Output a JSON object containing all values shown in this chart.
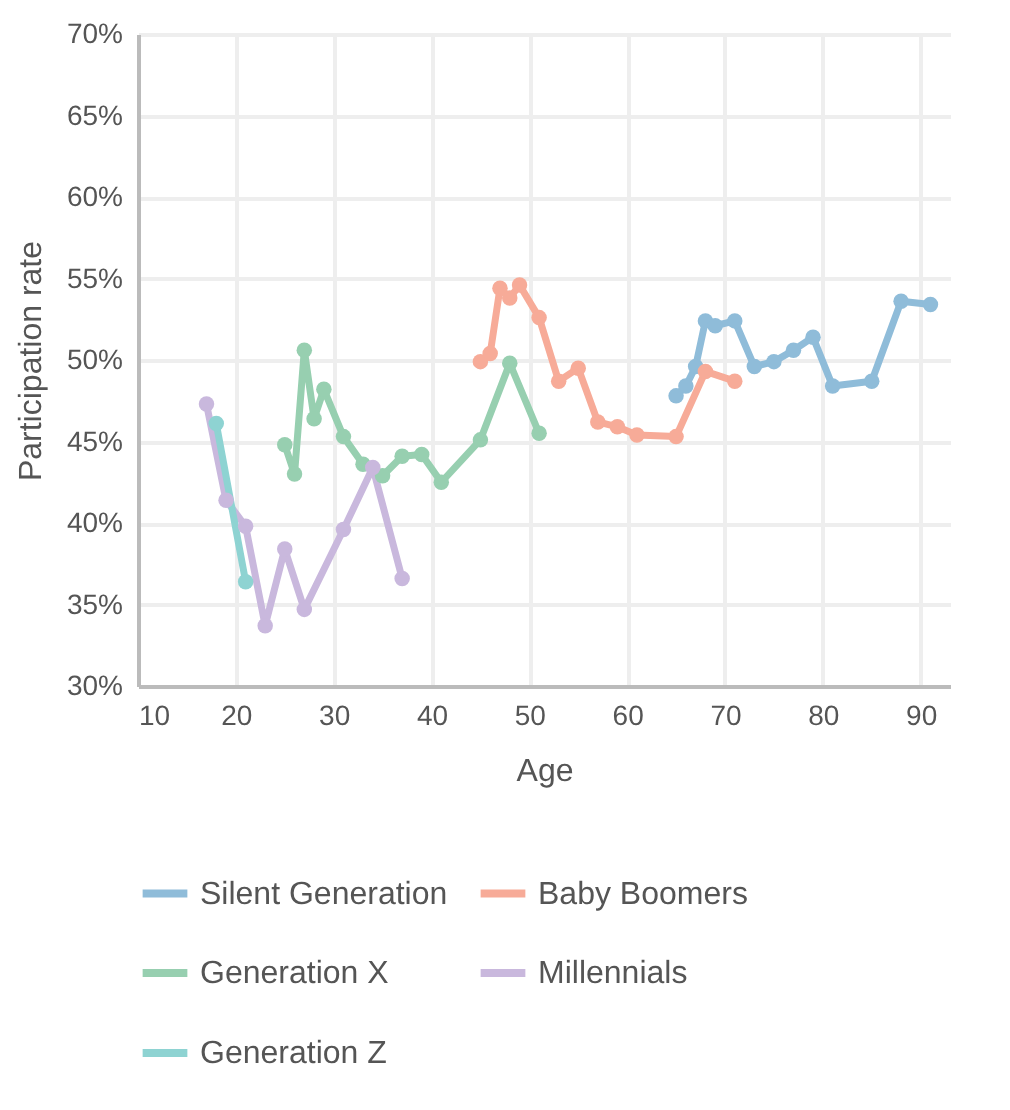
{
  "chart_data": {
    "type": "line",
    "xlabel": "Age",
    "ylabel": "Participation rate",
    "xlim": [
      10,
      93
    ],
    "xticks": [
      10,
      20,
      30,
      40,
      50,
      60,
      70,
      80,
      90
    ],
    "ylim": [
      30,
      70
    ],
    "yticks": [
      {
        "value": 30,
        "label": "30%"
      },
      {
        "value": 35,
        "label": "35%"
      },
      {
        "value": 40,
        "label": "40%"
      },
      {
        "value": 45,
        "label": "45%"
      },
      {
        "value": 50,
        "label": "50%"
      },
      {
        "value": 55,
        "label": "55%"
      },
      {
        "value": 60,
        "label": "60%"
      },
      {
        "value": 65,
        "label": "65%"
      },
      {
        "value": 70,
        "label": "70%"
      }
    ],
    "grid": true,
    "legend": "bottom",
    "marker": "circle",
    "line_style": "solid",
    "series": [
      {
        "name": "Silent Generation",
        "color": "#8fbcd9",
        "x": [
          65,
          66,
          67,
          68,
          69,
          71,
          73,
          75,
          77,
          79,
          81,
          85,
          88,
          91
        ],
        "values": [
          47.8,
          48.4,
          49.6,
          52.4,
          52.1,
          52.4,
          49.6,
          49.9,
          50.6,
          51.4,
          48.4,
          48.7,
          53.6,
          53.4
        ]
      },
      {
        "name": "Baby Boomers",
        "color": "#f7ab98",
        "x": [
          45,
          46,
          47,
          48,
          49,
          51,
          53,
          55,
          57,
          59,
          61,
          65,
          68,
          71
        ],
        "values": [
          49.9,
          50.4,
          54.4,
          53.8,
          54.6,
          52.6,
          48.7,
          49.5,
          46.2,
          45.9,
          45.4,
          45.3,
          49.3,
          48.7
        ]
      },
      {
        "name": "Generation X",
        "color": "#97cfb0",
        "x": [
          25,
          26,
          27,
          28,
          29,
          31,
          33,
          35,
          37,
          39,
          41,
          45,
          48,
          51
        ],
        "values": [
          44.8,
          43.0,
          50.6,
          46.4,
          48.2,
          45.3,
          43.6,
          42.9,
          44.1,
          44.2,
          42.5,
          45.1,
          49.8,
          45.5
        ]
      },
      {
        "name": "Millennials",
        "color": "#c9b8dd",
        "x": [
          17,
          19,
          21,
          23,
          25,
          27,
          31,
          34,
          37
        ],
        "values": [
          47.3,
          41.4,
          39.8,
          33.7,
          38.4,
          34.7,
          39.6,
          43.4,
          36.6
        ]
      },
      {
        "name": "Generation Z",
        "color": "#8ed3d2",
        "x": [
          18,
          21
        ],
        "values": [
          46.1,
          36.4
        ]
      }
    ]
  }
}
